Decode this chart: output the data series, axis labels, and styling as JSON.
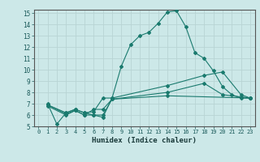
{
  "xlabel": "Humidex (Indice chaleur)",
  "bg_color": "#cce8e8",
  "grid_color": "#b8d4d4",
  "line_color": "#1a7a6e",
  "xlim": [
    -0.5,
    23.5
  ],
  "ylim": [
    5,
    15.3
  ],
  "yticks": [
    5,
    6,
    7,
    8,
    9,
    10,
    11,
    12,
    13,
    14,
    15
  ],
  "xticks": [
    0,
    1,
    2,
    3,
    4,
    5,
    6,
    7,
    8,
    9,
    10,
    11,
    12,
    13,
    14,
    15,
    16,
    17,
    18,
    19,
    20,
    21,
    22,
    23
  ],
  "lines": [
    {
      "x": [
        1,
        2,
        3,
        4,
        5,
        6,
        7,
        8,
        9,
        10,
        11,
        12,
        13,
        14,
        15,
        16,
        17,
        18,
        19,
        20,
        21,
        22,
        23
      ],
      "y": [
        7.0,
        5.2,
        6.2,
        6.5,
        6.2,
        6.0,
        5.8,
        7.5,
        10.3,
        12.2,
        13.0,
        13.3,
        14.1,
        15.1,
        15.2,
        13.8,
        11.5,
        11.0,
        9.9,
        8.5,
        7.8,
        7.5,
        7.5
      ]
    },
    {
      "x": [
        1,
        3,
        4,
        5,
        6,
        7,
        8,
        14,
        18,
        20,
        22,
        23
      ],
      "y": [
        6.9,
        6.2,
        6.5,
        6.2,
        6.3,
        7.5,
        7.5,
        8.6,
        9.5,
        9.8,
        7.8,
        7.5
      ]
    },
    {
      "x": [
        1,
        3,
        4,
        5,
        6,
        7,
        8,
        14,
        18,
        20,
        22,
        23
      ],
      "y": [
        6.9,
        6.1,
        6.4,
        6.0,
        6.0,
        6.0,
        7.4,
        8.0,
        8.8,
        7.8,
        7.6,
        7.5
      ]
    },
    {
      "x": [
        1,
        3,
        4,
        5,
        6,
        7,
        8,
        14,
        23
      ],
      "y": [
        6.8,
        6.0,
        6.4,
        6.0,
        6.5,
        6.5,
        7.4,
        7.7,
        7.5
      ]
    }
  ]
}
